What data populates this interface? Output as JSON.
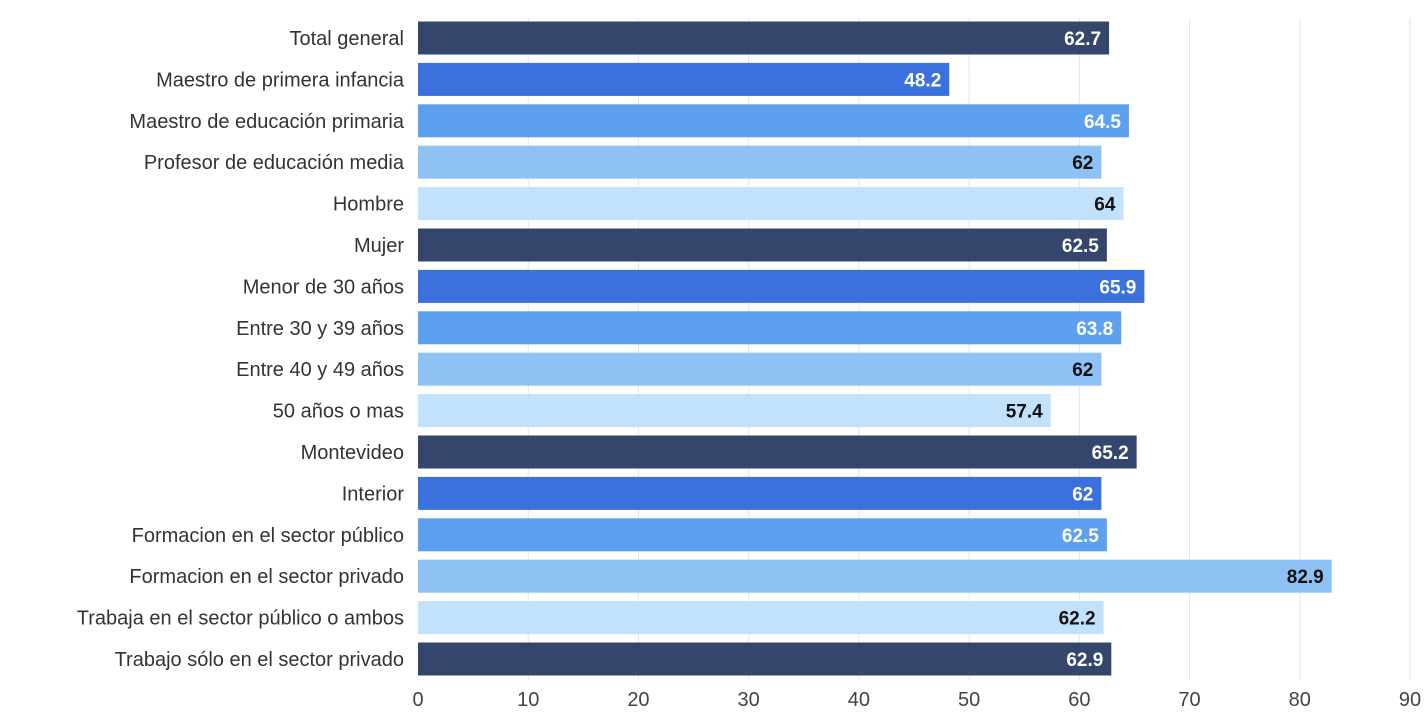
{
  "chart_data": {
    "type": "bar",
    "orientation": "horizontal",
    "categories": [
      "Total general",
      "Maestro de primera infancia",
      "Maestro de educación primaria",
      "Profesor de educación media",
      "Hombre",
      "Mujer",
      "Menor de 30 años",
      "Entre 30 y 39 años",
      "Entre 40 y 49 años",
      "50 años o mas",
      "Montevideo",
      "Interior",
      "Formacion en el sector público",
      "Formacion en el sector privado",
      "Trabaja en el sector público o ambos",
      "Trabajo sólo en el sector privado"
    ],
    "values": [
      62.7,
      48.2,
      64.5,
      62,
      64,
      62.5,
      65.9,
      63.8,
      62,
      57.4,
      65.2,
      62,
      62.5,
      82.9,
      62.2,
      62.9
    ],
    "value_labels": [
      "62.7",
      "48.2",
      "64.5",
      "62",
      "64",
      "62.5",
      "65.9",
      "63.8",
      "62",
      "57.4",
      "65.2",
      "62",
      "62.5",
      "82.9",
      "62.2",
      "62.9"
    ],
    "colors": [
      "#34466b",
      "#3a71dc",
      "#5ea0f0",
      "#8ec2f5",
      "#c2e2fb",
      "#34466b",
      "#3a71dc",
      "#5ea0f0",
      "#8ec2f5",
      "#c2e2fb",
      "#34466b",
      "#3a71dc",
      "#5ea0f0",
      "#8ec2f5",
      "#c2e2fb",
      "#34466b"
    ],
    "label_text_colors": [
      "#ffffff",
      "#ffffff",
      "#ffffff",
      "#111111",
      "#111111",
      "#ffffff",
      "#ffffff",
      "#ffffff",
      "#111111",
      "#111111",
      "#ffffff",
      "#ffffff",
      "#ffffff",
      "#111111",
      "#111111",
      "#ffffff"
    ],
    "xlim": [
      0,
      90
    ],
    "xticks": [
      0,
      10,
      20,
      30,
      40,
      50,
      60,
      70,
      80,
      90
    ],
    "xtick_labels": [
      "0",
      "10",
      "20",
      "30",
      "40",
      "50",
      "60",
      "70",
      "80",
      "90"
    ],
    "grid": true,
    "legend": "none"
  }
}
